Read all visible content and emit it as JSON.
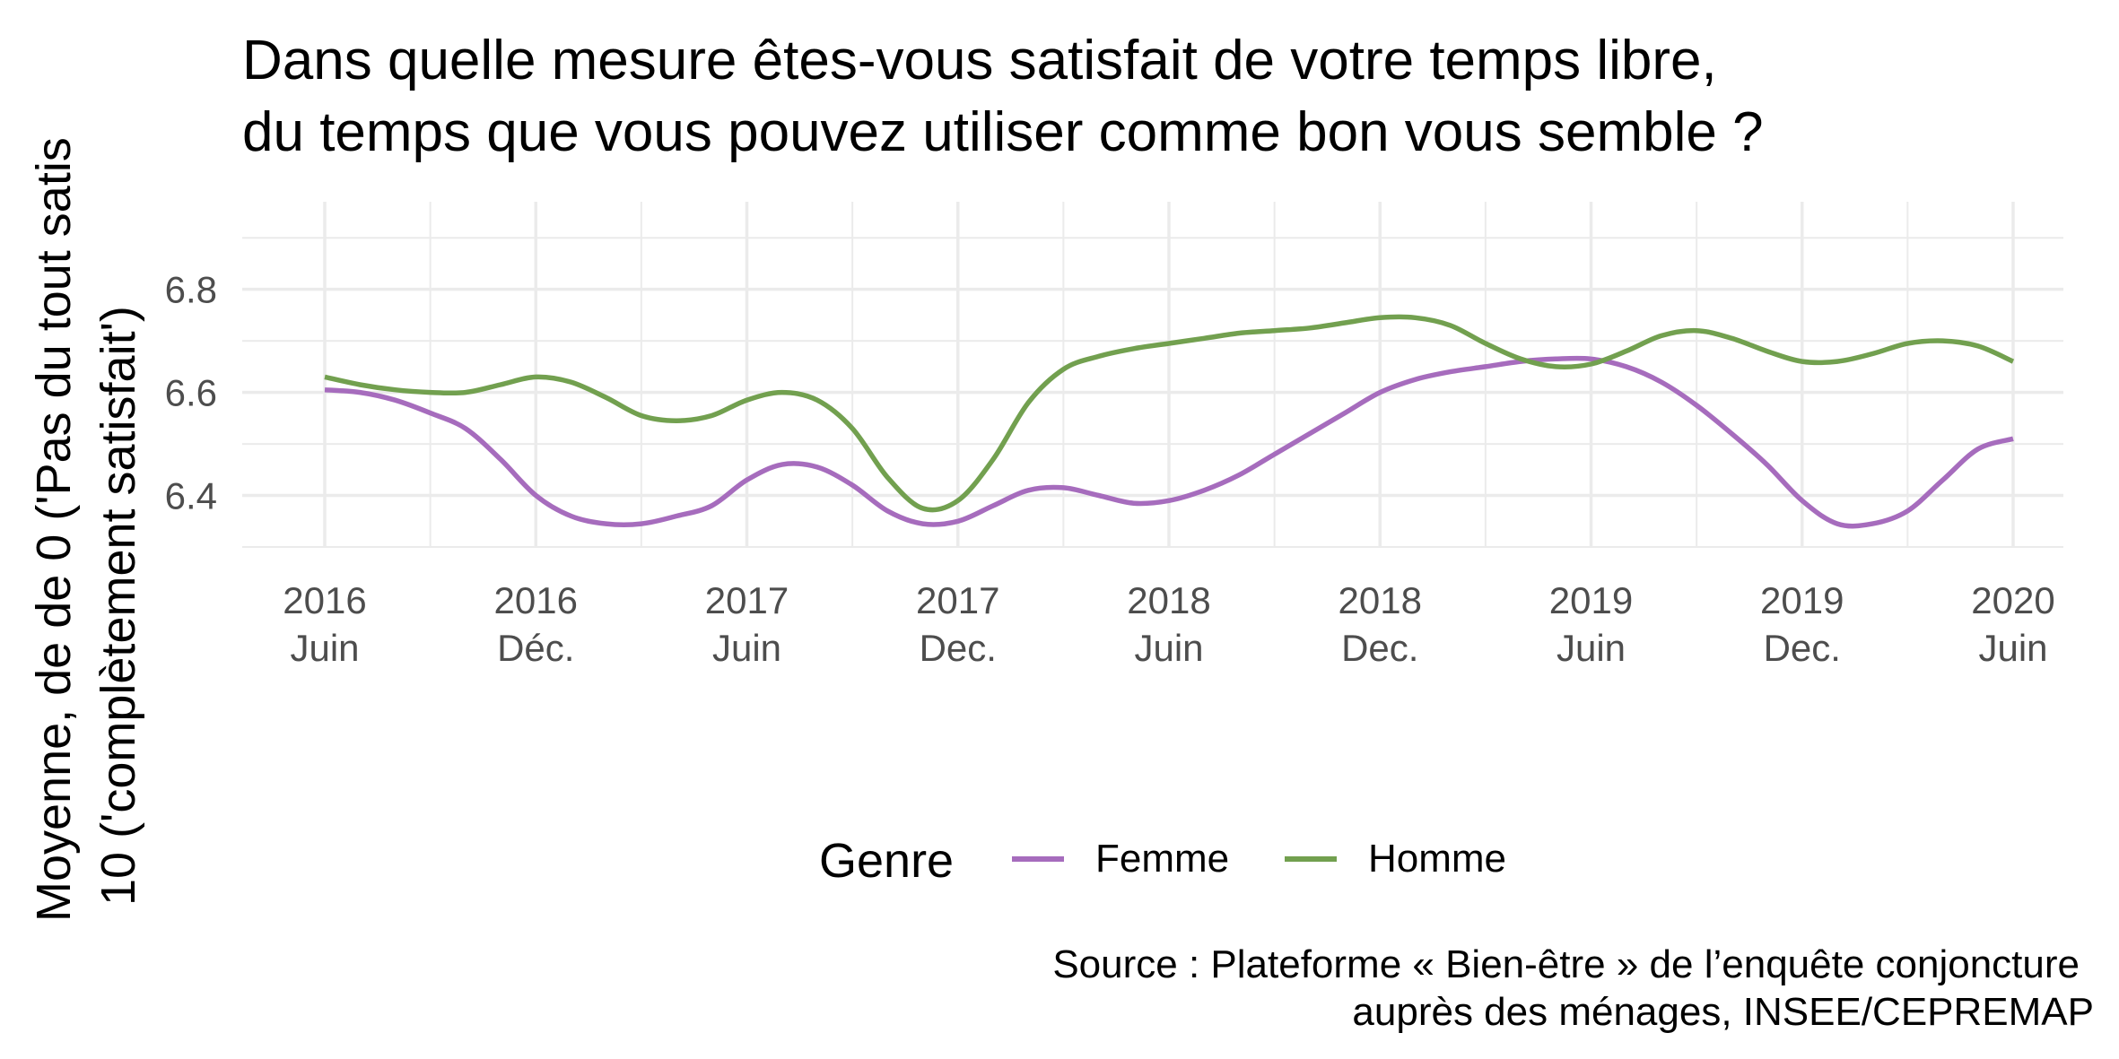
{
  "chart_data": {
    "type": "line",
    "title": [
      "Dans quelle mesure êtes-vous satisfait de votre temps libre,",
      "du temps que vous pouvez utiliser comme bon vous semble ?"
    ],
    "ylabel": [
      "Moyenne, de de 0 ('Pas du tout satis",
      "10 ('complètement satisfait')"
    ],
    "xlabel": "",
    "ylim": [
      6.3,
      6.97
    ],
    "y_ticks": [
      "6.4",
      "6.6",
      "6.8"
    ],
    "x_range": [
      "2016-06",
      "2020-06"
    ],
    "x_ticks": [
      {
        "date": "2016-06",
        "line1": "2016",
        "line2": "Juin"
      },
      {
        "date": "2016-12",
        "line1": "2016",
        "line2": "Déc."
      },
      {
        "date": "2017-06",
        "line1": "2017",
        "line2": "Juin"
      },
      {
        "date": "2017-12",
        "line1": "2017",
        "line2": "Dec."
      },
      {
        "date": "2018-06",
        "line1": "2018",
        "line2": "Juin"
      },
      {
        "date": "2018-12",
        "line1": "2018",
        "line2": "Dec."
      },
      {
        "date": "2019-06",
        "line1": "2019",
        "line2": "Juin"
      },
      {
        "date": "2019-12",
        "line1": "2019",
        "line2": "Dec."
      },
      {
        "date": "2020-06",
        "line1": "2020",
        "line2": "Juin"
      }
    ],
    "legend": {
      "title": "Genre",
      "position": "bottom"
    },
    "grid": true,
    "series": [
      {
        "name": "Femme",
        "color": "#a66cbd",
        "points": [
          [
            "2016-06",
            6.605
          ],
          [
            "2016-07",
            6.6
          ],
          [
            "2016-08",
            6.585
          ],
          [
            "2016-09",
            6.56
          ],
          [
            "2016-10",
            6.53
          ],
          [
            "2016-11",
            6.47
          ],
          [
            "2016-12",
            6.4
          ],
          [
            "2017-01",
            6.36
          ],
          [
            "2017-02",
            6.345
          ],
          [
            "2017-03",
            6.345
          ],
          [
            "2017-04",
            6.36
          ],
          [
            "2017-05",
            6.38
          ],
          [
            "2017-06",
            6.43
          ],
          [
            "2017-07",
            6.46
          ],
          [
            "2017-08",
            6.455
          ],
          [
            "2017-09",
            6.42
          ],
          [
            "2017-10",
            6.37
          ],
          [
            "2017-11",
            6.345
          ],
          [
            "2017-12",
            6.35
          ],
          [
            "2018-01",
            6.38
          ],
          [
            "2018-02",
            6.41
          ],
          [
            "2018-03",
            6.415
          ],
          [
            "2018-04",
            6.4
          ],
          [
            "2018-05",
            6.385
          ],
          [
            "2018-06",
            6.39
          ],
          [
            "2018-07",
            6.41
          ],
          [
            "2018-08",
            6.44
          ],
          [
            "2018-09",
            6.48
          ],
          [
            "2018-10",
            6.52
          ],
          [
            "2018-11",
            6.56
          ],
          [
            "2018-12",
            6.6
          ],
          [
            "2019-01",
            6.625
          ],
          [
            "2019-02",
            6.64
          ],
          [
            "2019-03",
            6.65
          ],
          [
            "2019-04",
            6.66
          ],
          [
            "2019-05",
            6.665
          ],
          [
            "2019-06",
            6.665
          ],
          [
            "2019-07",
            6.65
          ],
          [
            "2019-08",
            6.62
          ],
          [
            "2019-09",
            6.575
          ],
          [
            "2019-10",
            6.52
          ],
          [
            "2019-11",
            6.46
          ],
          [
            "2019-12",
            6.39
          ],
          [
            "2020-01",
            6.345
          ],
          [
            "2020-02",
            6.345
          ],
          [
            "2020-03",
            6.37
          ],
          [
            "2020-04",
            6.43
          ],
          [
            "2020-05",
            6.49
          ],
          [
            "2020-06",
            6.51
          ]
        ]
      },
      {
        "name": "Homme",
        "color": "#72a04f",
        "points": [
          [
            "2016-06",
            6.63
          ],
          [
            "2016-07",
            6.615
          ],
          [
            "2016-08",
            6.605
          ],
          [
            "2016-09",
            6.6
          ],
          [
            "2016-10",
            6.6
          ],
          [
            "2016-11",
            6.615
          ],
          [
            "2016-12",
            6.63
          ],
          [
            "2017-01",
            6.62
          ],
          [
            "2017-02",
            6.59
          ],
          [
            "2017-03",
            6.555
          ],
          [
            "2017-04",
            6.545
          ],
          [
            "2017-05",
            6.555
          ],
          [
            "2017-06",
            6.585
          ],
          [
            "2017-07",
            6.6
          ],
          [
            "2017-08",
            6.585
          ],
          [
            "2017-09",
            6.53
          ],
          [
            "2017-10",
            6.435
          ],
          [
            "2017-11",
            6.375
          ],
          [
            "2017-12",
            6.39
          ],
          [
            "2018-01",
            6.47
          ],
          [
            "2018-02",
            6.58
          ],
          [
            "2018-03",
            6.645
          ],
          [
            "2018-04",
            6.67
          ],
          [
            "2018-05",
            6.685
          ],
          [
            "2018-06",
            6.695
          ],
          [
            "2018-07",
            6.705
          ],
          [
            "2018-08",
            6.715
          ],
          [
            "2018-09",
            6.72
          ],
          [
            "2018-10",
            6.725
          ],
          [
            "2018-11",
            6.735
          ],
          [
            "2018-12",
            6.745
          ],
          [
            "2019-01",
            6.745
          ],
          [
            "2019-02",
            6.73
          ],
          [
            "2019-03",
            6.695
          ],
          [
            "2019-04",
            6.665
          ],
          [
            "2019-05",
            6.65
          ],
          [
            "2019-06",
            6.655
          ],
          [
            "2019-07",
            6.68
          ],
          [
            "2019-08",
            6.71
          ],
          [
            "2019-09",
            6.72
          ],
          [
            "2019-10",
            6.705
          ],
          [
            "2019-11",
            6.68
          ],
          [
            "2019-12",
            6.66
          ],
          [
            "2020-01",
            6.66
          ],
          [
            "2020-02",
            6.675
          ],
          [
            "2020-03",
            6.695
          ],
          [
            "2020-04",
            6.7
          ],
          [
            "2020-05",
            6.69
          ],
          [
            "2020-06",
            6.66
          ]
        ]
      }
    ]
  },
  "caption": [
    "Source : Plateforme « Bien-être » de l’enquête conjoncture",
    "auprès des ménages, INSEE/CEPREMAP"
  ]
}
